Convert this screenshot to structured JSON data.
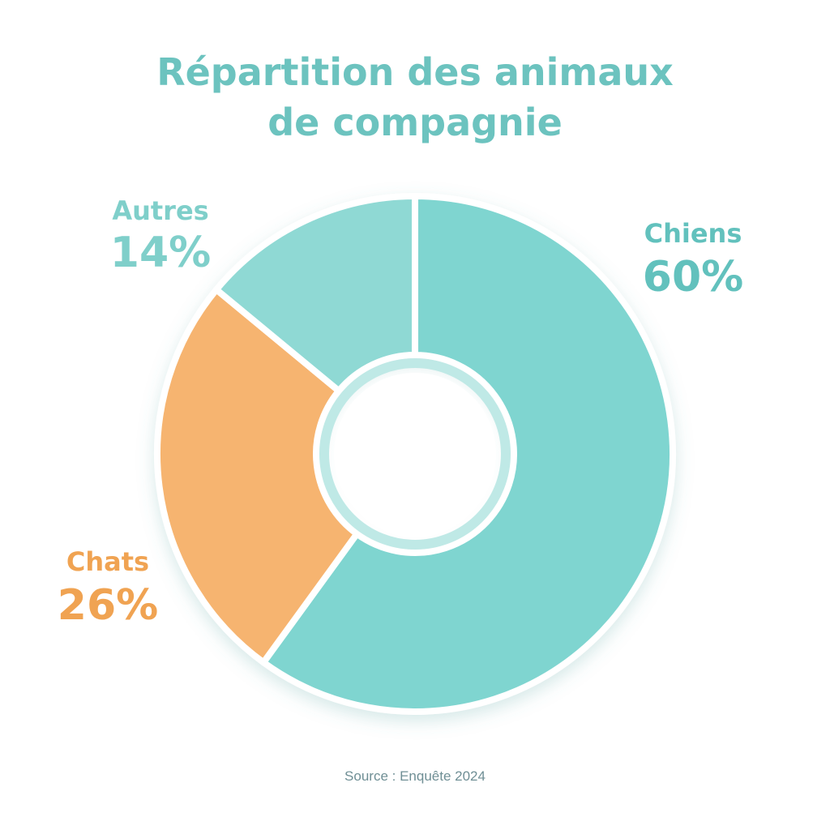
{
  "chart_data": {
    "type": "donut",
    "title": "Répartition des animaux de compagnie",
    "categories": [
      "Chiens",
      "Chats",
      "Autres"
    ],
    "values": [
      60,
      26,
      14
    ],
    "value_labels": [
      "60%",
      "26%",
      "14%"
    ],
    "colors": [
      "#7fd5d0",
      "#f6b46f",
      "#8fd9d4"
    ],
    "source": "Source : Enquête 2024"
  }
}
